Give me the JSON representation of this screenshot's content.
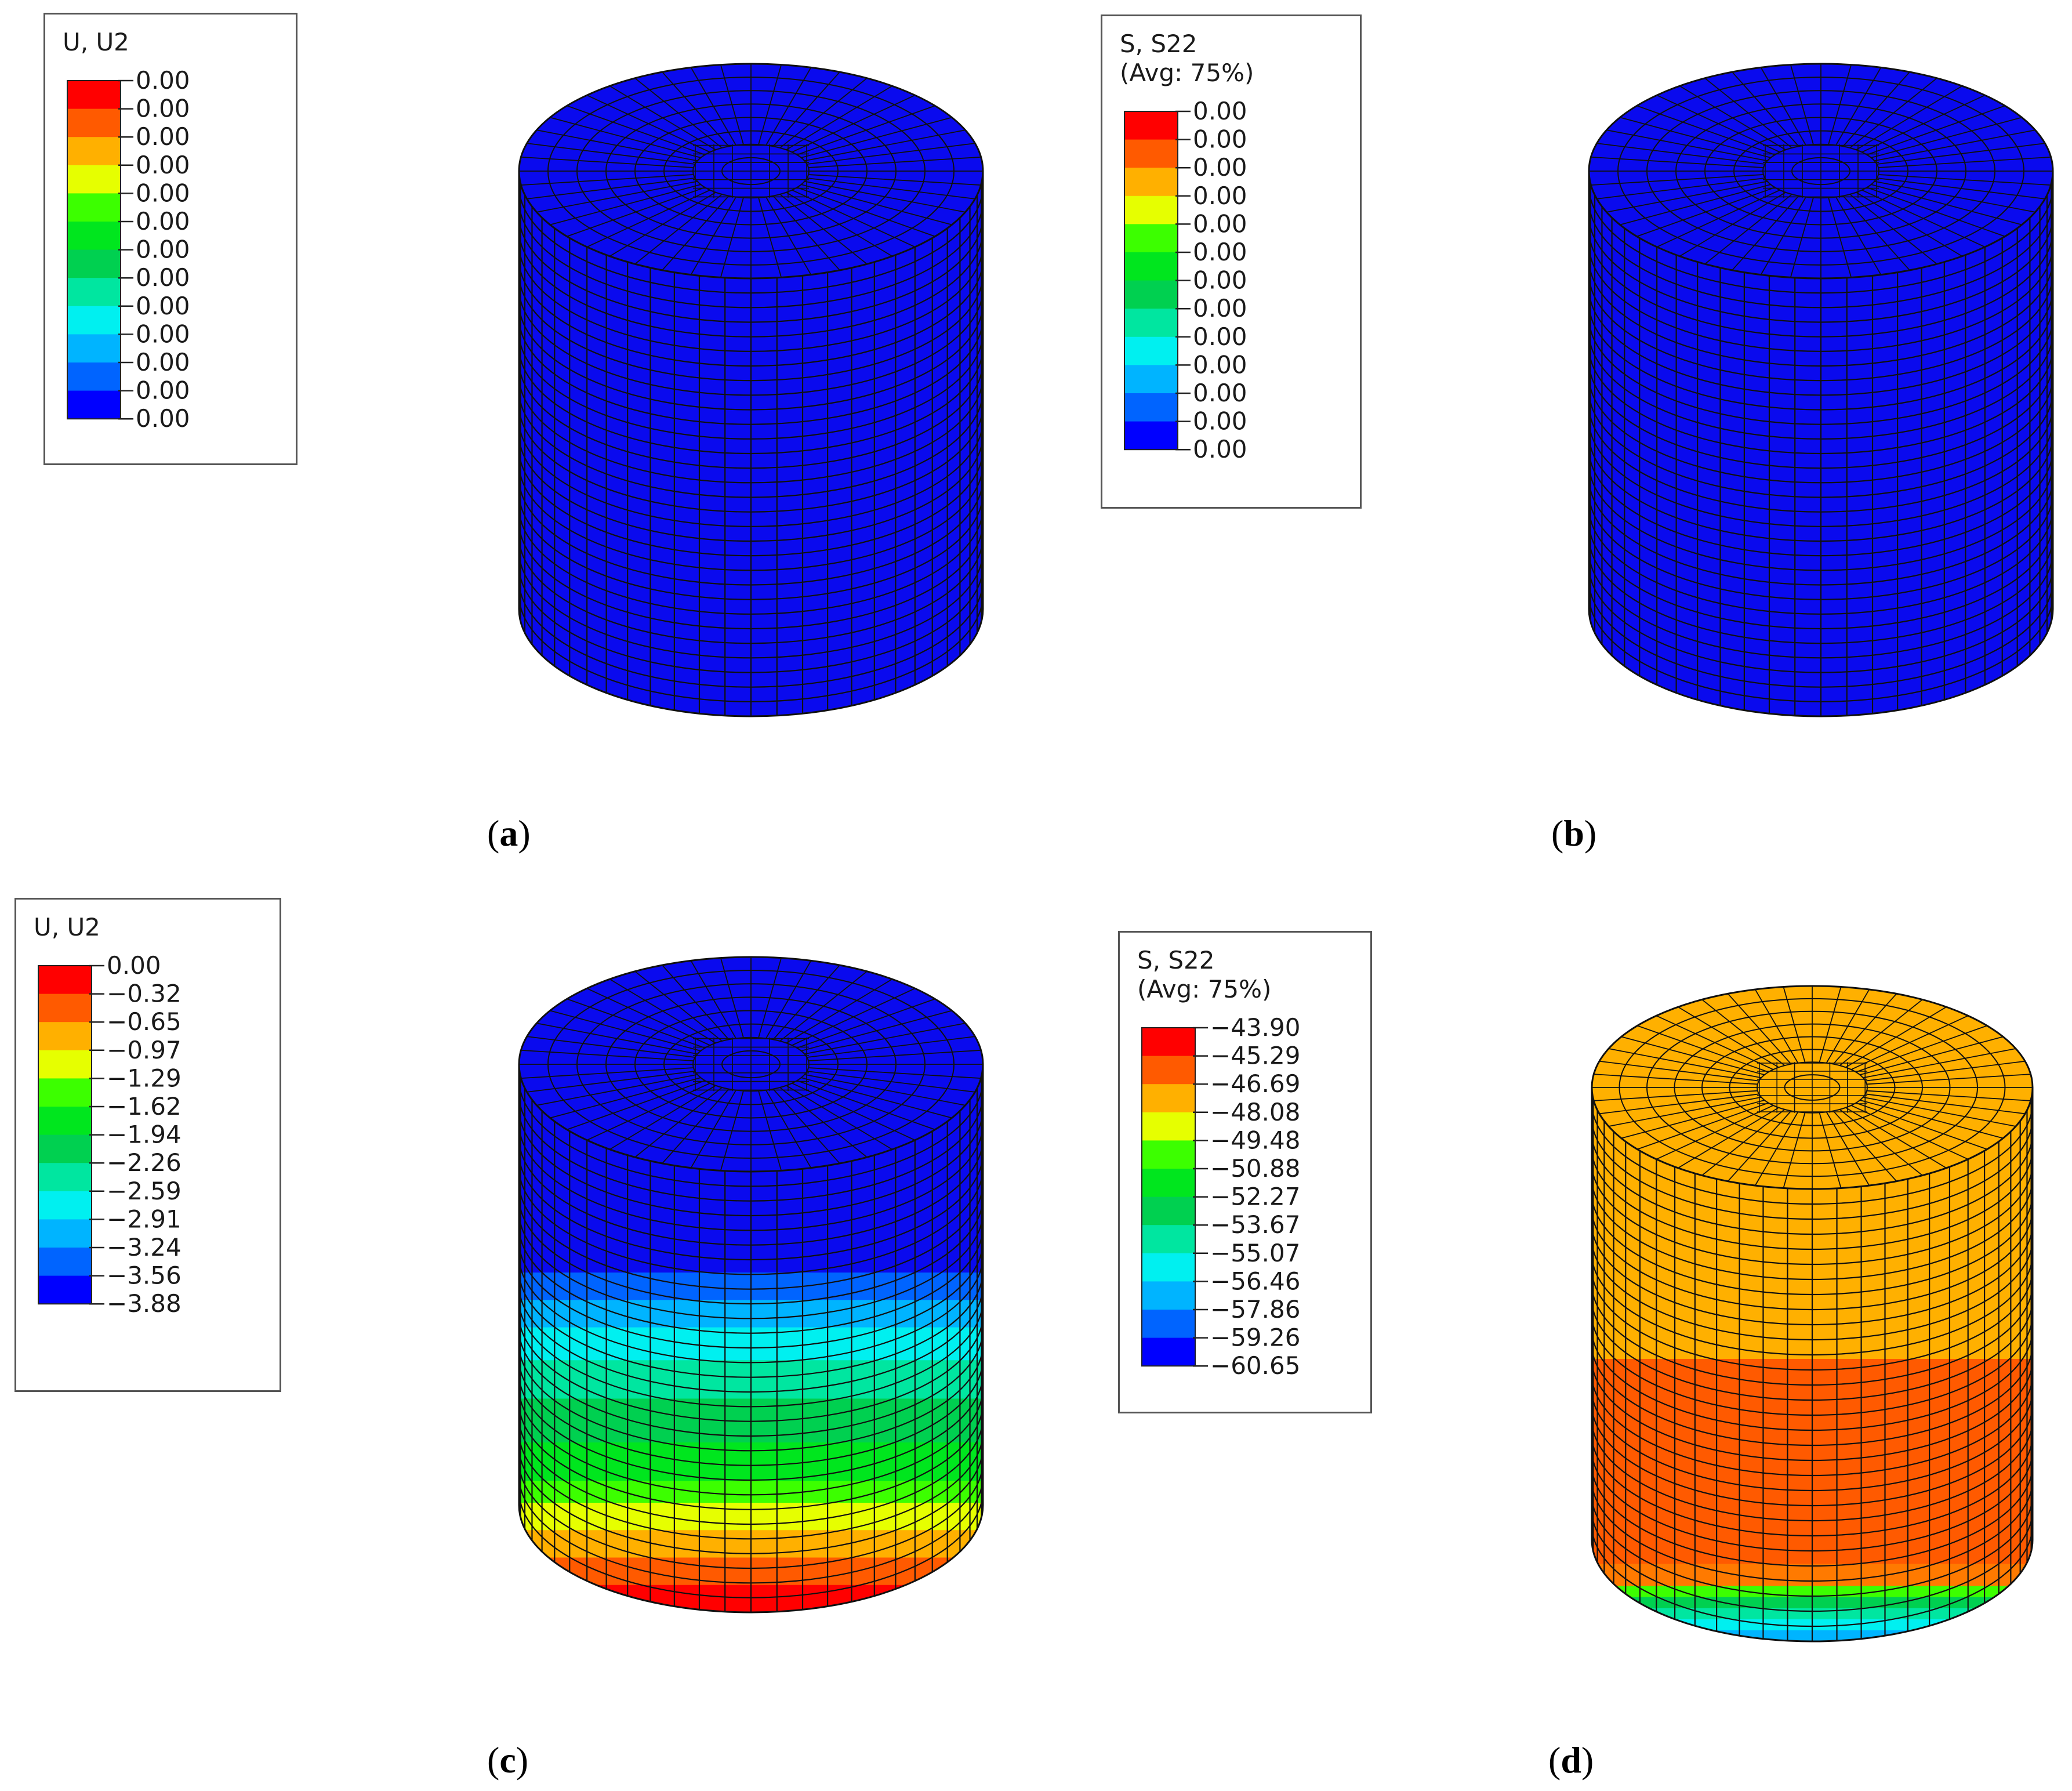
{
  "colormap": [
    "#ff0000",
    "#ff5a00",
    "#ffb000",
    "#e6ff00",
    "#3cff00",
    "#00e61e",
    "#00d050",
    "#00e6a0",
    "#00f0f0",
    "#00b4ff",
    "#0064ff",
    "#0000ff"
  ],
  "panels": [
    {
      "id": "a",
      "caption": "a",
      "legend": {
        "title": [
          "U, U2"
        ],
        "values": [
          "0.00",
          "0.00",
          "0.00",
          "0.00",
          "0.00",
          "0.00",
          "0.00",
          "0.00",
          "0.00",
          "0.00",
          "0.00",
          "0.00",
          "0.00"
        ]
      },
      "bands": [
        {
          "from": 0,
          "to": 1,
          "color": "#0a0aee"
        }
      ]
    },
    {
      "id": "b",
      "caption": "b",
      "legend": {
        "title": [
          "S, S22",
          "(Avg: 75%)"
        ],
        "values": [
          "0.00",
          "0.00",
          "0.00",
          "0.00",
          "0.00",
          "0.00",
          "0.00",
          "0.00",
          "0.00",
          "0.00",
          "0.00",
          "0.00",
          "0.00"
        ]
      },
      "bands": [
        {
          "from": 0,
          "to": 1,
          "color": "#0a0aee"
        }
      ]
    },
    {
      "id": "c",
      "caption": "c",
      "legend": {
        "title": [
          "U, U2"
        ],
        "values": [
          "0.00",
          "−0.32",
          "−0.65",
          "−0.97",
          "−1.29",
          "−1.62",
          "−1.94",
          "−2.26",
          "−2.59",
          "−2.91",
          "−3.24",
          "−3.56",
          "−3.88"
        ]
      },
      "bands": [
        {
          "from": 0.0,
          "to": 0.38,
          "color": "#0a0aee"
        },
        {
          "from": 0.38,
          "to": 0.43,
          "color": "#0064ff"
        },
        {
          "from": 0.43,
          "to": 0.48,
          "color": "#00b4ff"
        },
        {
          "from": 0.48,
          "to": 0.54,
          "color": "#00f0f0"
        },
        {
          "from": 0.54,
          "to": 0.61,
          "color": "#00e6a0"
        },
        {
          "from": 0.61,
          "to": 0.69,
          "color": "#00d050"
        },
        {
          "from": 0.69,
          "to": 0.76,
          "color": "#00e61e"
        },
        {
          "from": 0.76,
          "to": 0.8,
          "color": "#3cff00"
        },
        {
          "from": 0.8,
          "to": 0.85,
          "color": "#e6ff00"
        },
        {
          "from": 0.85,
          "to": 0.9,
          "color": "#ffb000"
        },
        {
          "from": 0.9,
          "to": 0.95,
          "color": "#ff5a00"
        },
        {
          "from": 0.95,
          "to": 1.0,
          "color": "#ff0000"
        }
      ]
    },
    {
      "id": "d",
      "caption": "d",
      "legend": {
        "title": [
          "S, S22",
          "(Avg: 75%)"
        ],
        "values": [
          "−43.90",
          "−45.29",
          "−46.69",
          "−48.08",
          "−49.48",
          "−50.88",
          "−52.27",
          "−53.67",
          "−55.07",
          "−56.46",
          "−57.86",
          "−59.26",
          "−60.65"
        ]
      },
      "bands": [
        {
          "from": 0.0,
          "to": 0.49,
          "color": "#ffb000"
        },
        {
          "from": 0.49,
          "to": 0.86,
          "color": "#ff5a00"
        },
        {
          "from": 0.86,
          "to": 0.9,
          "color": "#ff7a00"
        },
        {
          "from": 0.9,
          "to": 0.92,
          "color": "#3cff00"
        },
        {
          "from": 0.92,
          "to": 0.94,
          "color": "#00d050"
        },
        {
          "from": 0.94,
          "to": 0.96,
          "color": "#00e6a0"
        },
        {
          "from": 0.96,
          "to": 0.98,
          "color": "#00f0f0"
        },
        {
          "from": 0.98,
          "to": 1.0,
          "color": "#00b4ff"
        }
      ]
    }
  ]
}
